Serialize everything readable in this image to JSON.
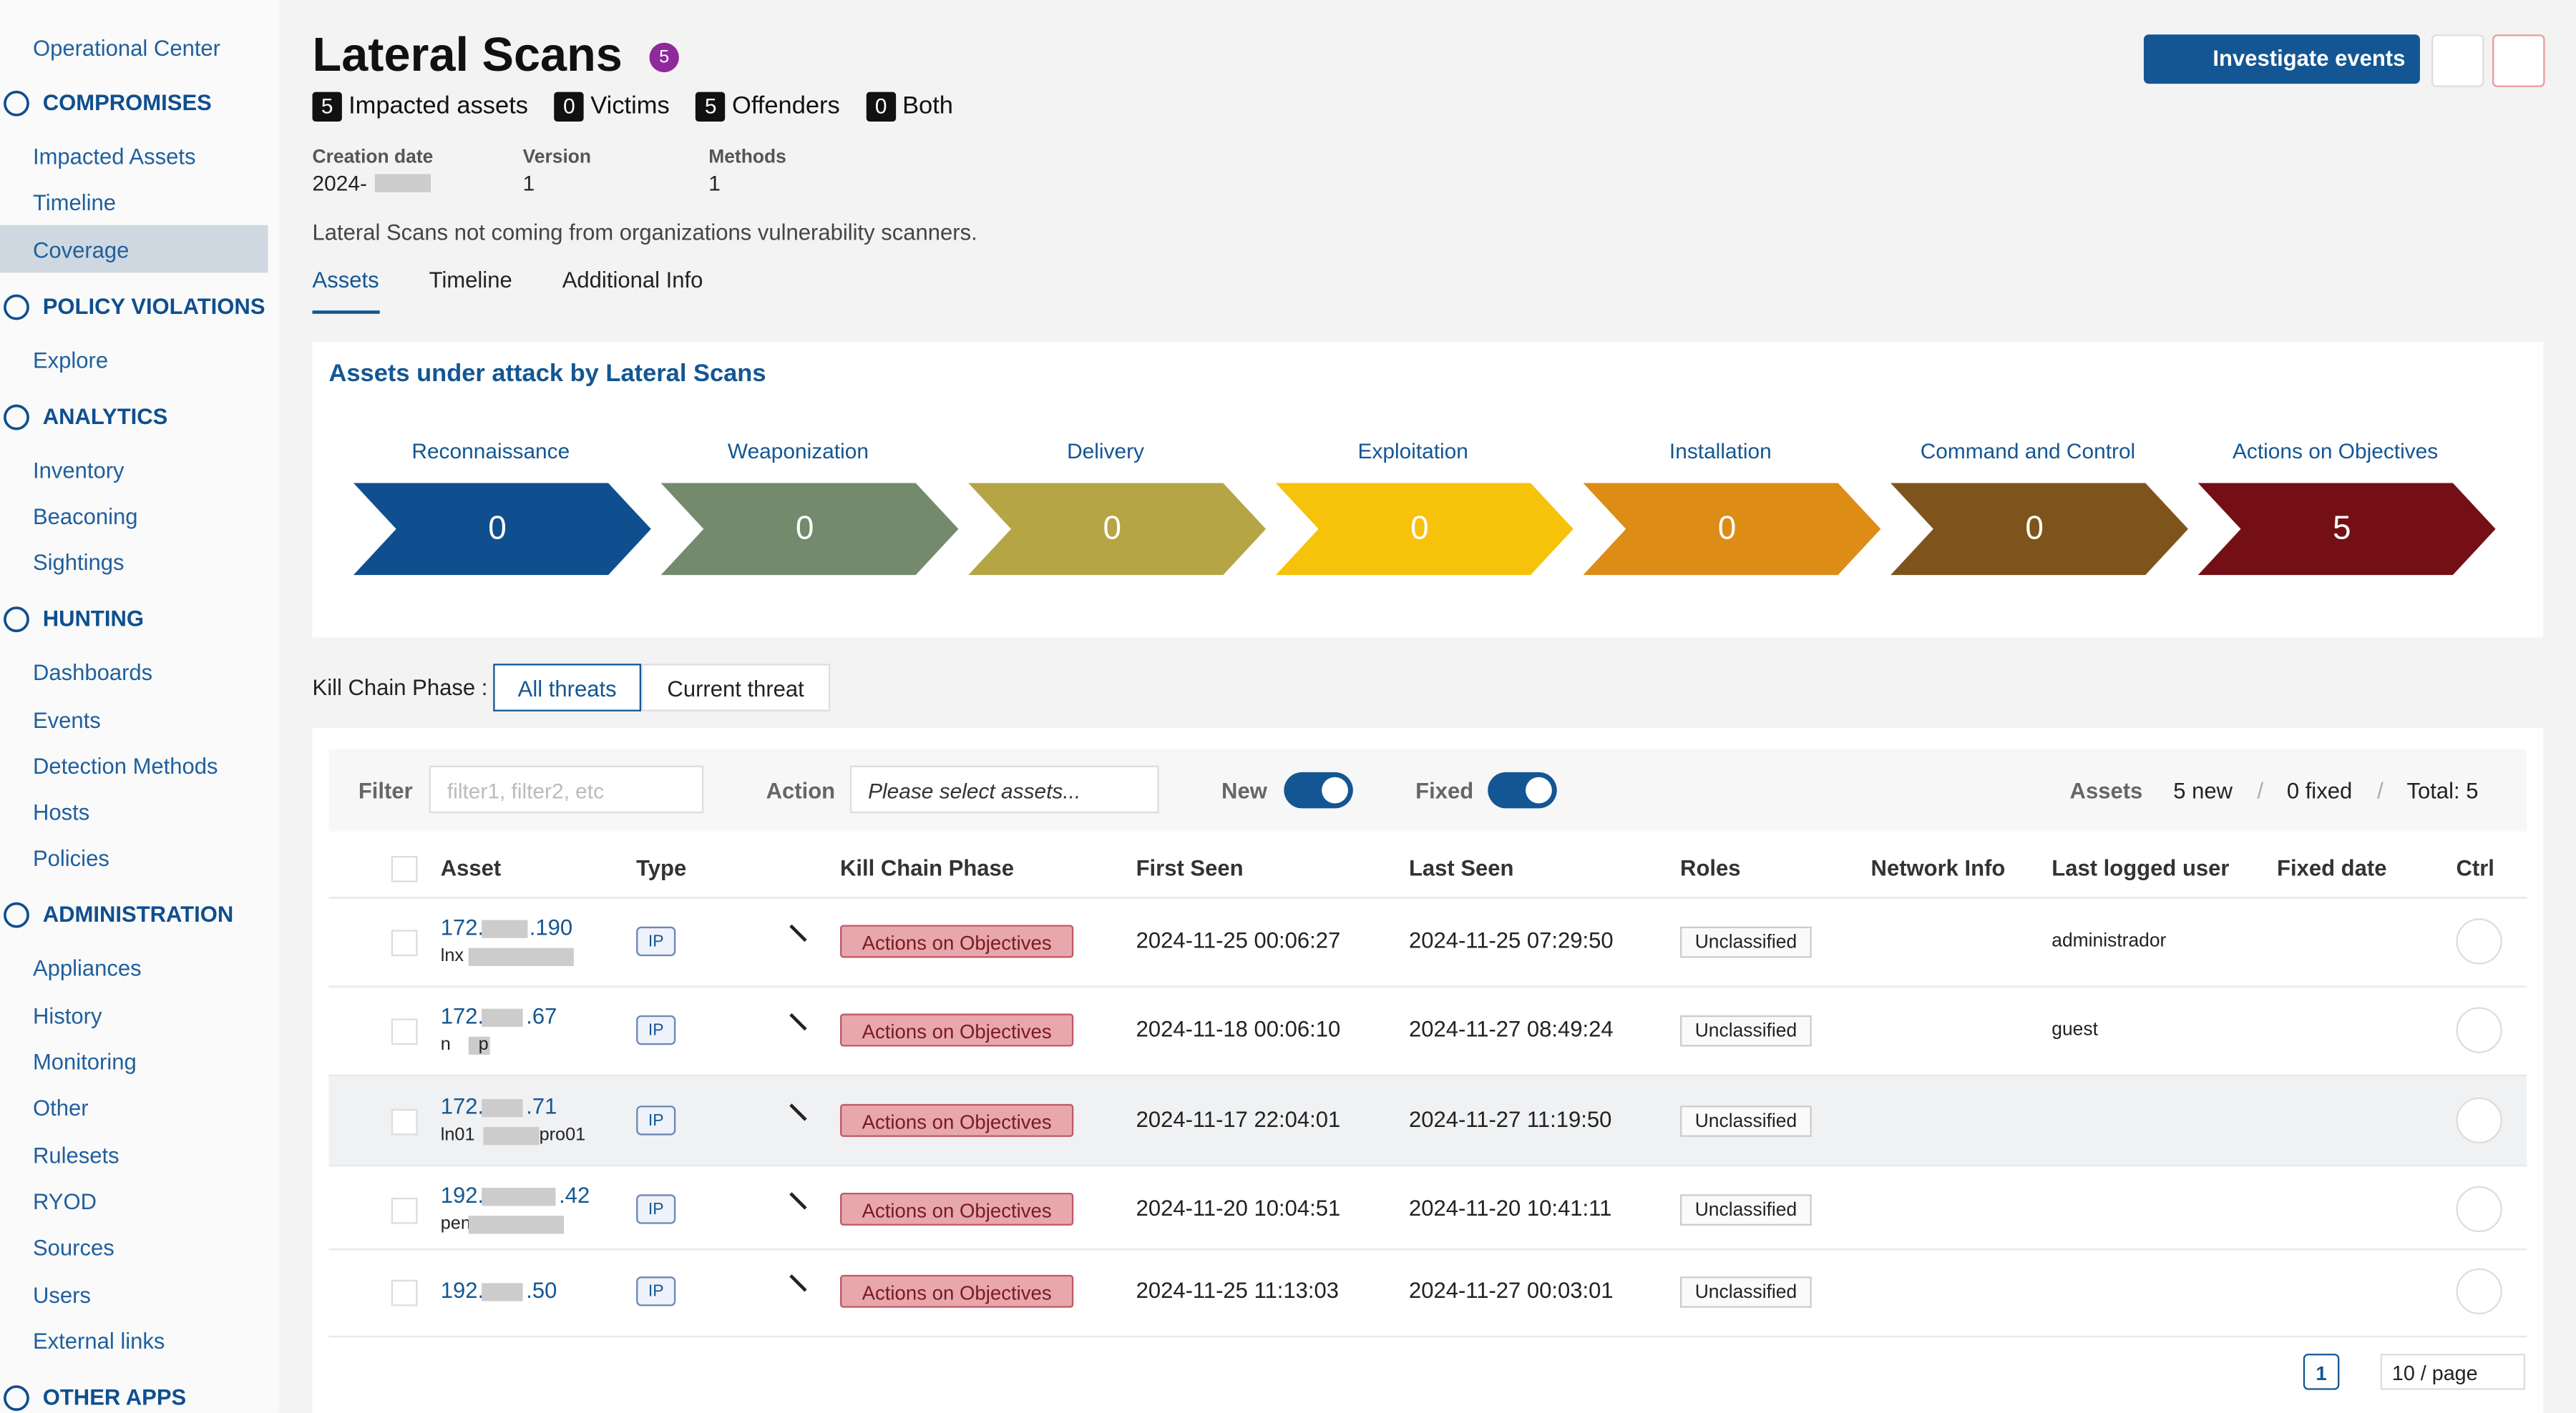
{
  "sidebar": {
    "top_item": "Operational Center",
    "active_item": [
      0,
      2
    ],
    "sections": [
      {
        "title": "COMPROMISES",
        "items": [
          "Impacted Assets",
          "Timeline",
          "Coverage"
        ]
      },
      {
        "title": "POLICY VIOLATIONS",
        "items": [
          "Explore"
        ]
      },
      {
        "title": "ANALYTICS",
        "items": [
          "Inventory",
          "Beaconing",
          "Sightings"
        ]
      },
      {
        "title": "HUNTING",
        "items": [
          "Dashboards",
          "Events",
          "Detection Methods",
          "Hosts",
          "Policies"
        ]
      },
      {
        "title": "ADMINISTRATION",
        "items": [
          "Appliances",
          "History",
          "Monitoring",
          "Other",
          "Rulesets",
          "RYOD",
          "Sources",
          "Users",
          "External links"
        ]
      },
      {
        "title": "OTHER APPS",
        "items": []
      }
    ]
  },
  "header": {
    "title": "Lateral Scans",
    "badge": "5",
    "investigate": "Investigate events",
    "counters": [
      {
        "count": "5",
        "label": "Impacted assets"
      },
      {
        "count": "0",
        "label": "Victims"
      },
      {
        "count": "5",
        "label": "Offenders"
      },
      {
        "count": "0",
        "label": "Both"
      }
    ],
    "meta": [
      {
        "label": "Creation date",
        "value": "2024-"
      },
      {
        "label": "Version",
        "value": "1"
      },
      {
        "label": "Methods",
        "value": "1"
      }
    ],
    "description": "Lateral Scans not coming from organizations vulnerability scanners.",
    "tabs": [
      "Assets",
      "Timeline",
      "Additional Info"
    ],
    "active_tab": 0
  },
  "kill_chain": {
    "title": "Assets under attack by Lateral Scans",
    "phases": [
      {
        "name": "Reconnaissance",
        "count": "0",
        "color": "#0f4f8f"
      },
      {
        "name": "Weaponization",
        "count": "0",
        "color": "#738a6c"
      },
      {
        "name": "Delivery",
        "count": "0",
        "color": "#b5a545"
      },
      {
        "name": "Exploitation",
        "count": "0",
        "color": "#f6c20a"
      },
      {
        "name": "Installation",
        "count": "0",
        "color": "#dd8c16"
      },
      {
        "name": "Command and Control",
        "count": "0",
        "color": "#7f541c"
      },
      {
        "name": "Actions on Objectives",
        "count": "5",
        "color": "#740f16"
      }
    ]
  },
  "phase_filter": {
    "label": "Kill Chain Phase :",
    "options": [
      "All threats",
      "Current threat"
    ],
    "active": 0
  },
  "toolbar": {
    "filter_label": "Filter",
    "filter_placeholder": "filter1, filter2, etc",
    "action_label": "Action",
    "action_placeholder": "Please select assets...",
    "new_label": "New",
    "fixed_label": "Fixed",
    "summary_label": "Assets",
    "separator": "/",
    "summary": [
      "5 new",
      "0 fixed",
      "Total: 5"
    ]
  },
  "table": {
    "columns": [
      "Asset",
      "Type",
      "Kill Chain Phase",
      "First Seen",
      "Last Seen",
      "Roles",
      "Network Info",
      "Last logged user",
      "Fixed date",
      "Ctrl"
    ],
    "rows": [
      {
        "asset": "172.",
        "asset_end": ".190",
        "host": "lnx",
        "host_end": "",
        "type": "IP",
        "phase": "Actions on Objectives",
        "first": "2024-11-25 00:06:27",
        "last": "2024-11-25 07:29:50",
        "role": "Unclassified",
        "user": "administrador"
      },
      {
        "asset": "172.",
        "asset_end": ".67",
        "host": "n",
        "host_end": "p",
        "type": "IP",
        "phase": "Actions on Objectives",
        "first": "2024-11-18 00:06:10",
        "last": "2024-11-27 08:49:24",
        "role": "Unclassified",
        "user": "guest"
      },
      {
        "asset": "172.",
        "asset_end": ".71",
        "host": "ln01",
        "host_end": "pro01",
        "type": "IP",
        "phase": "Actions on Objectives",
        "first": "2024-11-17 22:04:01",
        "last": "2024-11-27 11:19:50",
        "role": "Unclassified",
        "user": ""
      },
      {
        "asset": "192.",
        "asset_end": ".42",
        "host": "pen",
        "host_end": "",
        "type": "IP",
        "phase": "Actions on Objectives",
        "first": "2024-11-20 10:04:51",
        "last": "2024-11-20 10:41:11",
        "role": "Unclassified",
        "user": ""
      },
      {
        "asset": "192.",
        "asset_end": ".50",
        "host": "",
        "host_end": "",
        "type": "IP",
        "phase": "Actions on Objectives",
        "first": "2024-11-25 11:13:03",
        "last": "2024-11-27 00:03:01",
        "role": "Unclassified",
        "user": ""
      }
    ]
  },
  "pagination": {
    "page": "1",
    "size": "10 / page"
  }
}
